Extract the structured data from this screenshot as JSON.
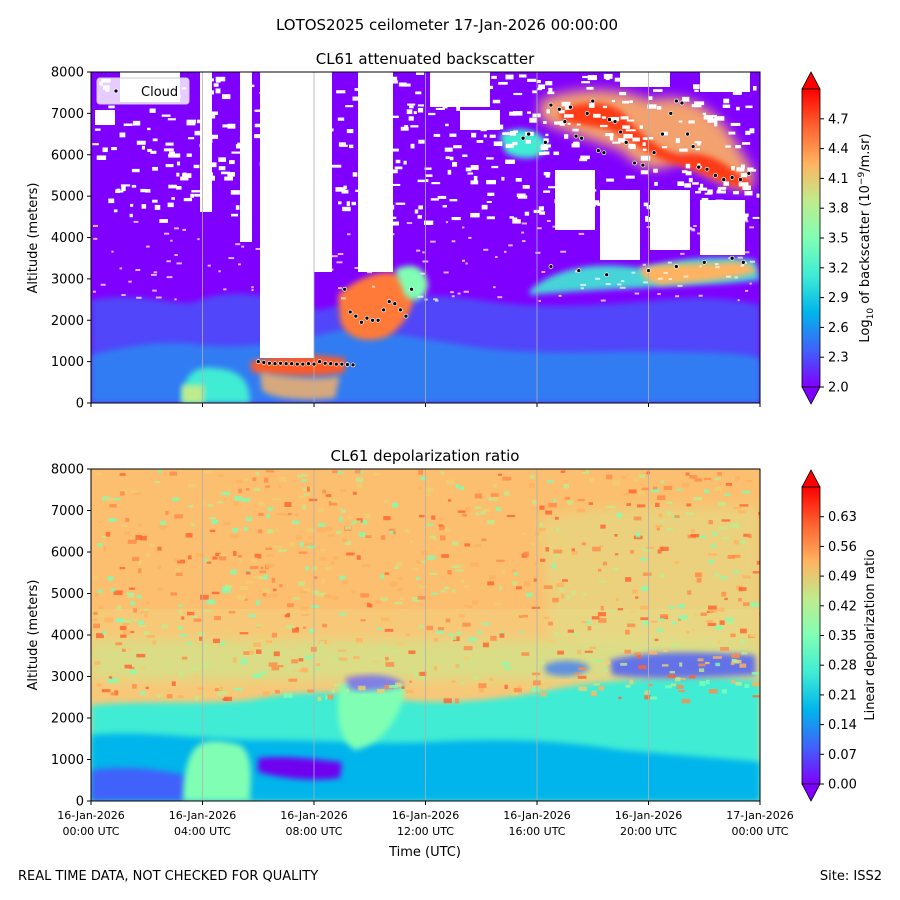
{
  "suptitle": "LOTOS2025 ceilometer 17-Jan-2026 00:00:00",
  "footer": {
    "left": "REAL TIME DATA, NOT CHECKED FOR QUALITY",
    "right": "Site: ISS2"
  },
  "chart_data": [
    {
      "type": "heatmap",
      "title": "CL61 attenuated backscatter",
      "ylabel": "Altitude (meters)",
      "xlabel": "",
      "ylim": [
        0,
        8000
      ],
      "yticks": [
        "0",
        "1000",
        "2000",
        "3000",
        "4000",
        "5000",
        "6000",
        "7000",
        "8000"
      ],
      "yticks_values": [
        0,
        1000,
        2000,
        3000,
        4000,
        5000,
        6000,
        7000,
        8000
      ],
      "x_hours": [
        0,
        4,
        8,
        12,
        16,
        20,
        24
      ],
      "colorbar": {
        "label_main": "Log",
        "label_sub": "10",
        "label_rest": " of backscatter (10",
        "label_sup": "−9",
        "label_end": "/m.sr)",
        "range": [
          2.0,
          5.0
        ],
        "ticks": [
          "2.0",
          "2.3",
          "2.6",
          "2.9",
          "3.2",
          "3.5",
          "3.8",
          "4.1",
          "4.4",
          "4.7"
        ],
        "tick_values": [
          2.0,
          2.3,
          2.6,
          2.9,
          3.2,
          3.5,
          3.8,
          4.1,
          4.4,
          4.7
        ]
      },
      "legend": {
        "label": "Cloud",
        "position": "top-left"
      },
      "cloud_points": [
        [
          6.0,
          1000
        ],
        [
          6.2,
          980
        ],
        [
          6.4,
          960
        ],
        [
          6.6,
          950
        ],
        [
          6.8,
          960
        ],
        [
          7.0,
          950
        ],
        [
          7.2,
          950
        ],
        [
          7.4,
          940
        ],
        [
          7.6,
          940
        ],
        [
          7.8,
          950
        ],
        [
          8.0,
          940
        ],
        [
          8.2,
          1000
        ],
        [
          8.4,
          960
        ],
        [
          8.6,
          950
        ],
        [
          8.8,
          940
        ],
        [
          9.0,
          940
        ],
        [
          9.2,
          930
        ],
        [
          9.4,
          920
        ],
        [
          9.1,
          2750
        ],
        [
          9.3,
          2200
        ],
        [
          9.5,
          2100
        ],
        [
          9.7,
          1950
        ],
        [
          9.9,
          2050
        ],
        [
          10.1,
          2000
        ],
        [
          10.3,
          2000
        ],
        [
          10.5,
          2250
        ],
        [
          10.7,
          2450
        ],
        [
          10.9,
          2400
        ],
        [
          11.1,
          2250
        ],
        [
          11.3,
          2100
        ],
        [
          11.5,
          2750
        ],
        [
          15.5,
          6400
        ],
        [
          15.7,
          6500
        ],
        [
          16.3,
          6300
        ],
        [
          16.5,
          7200
        ],
        [
          16.8,
          7100
        ],
        [
          17.0,
          6800
        ],
        [
          17.2,
          7150
        ],
        [
          17.4,
          6450
        ],
        [
          17.6,
          6400
        ],
        [
          17.8,
          7000
        ],
        [
          18.0,
          7300
        ],
        [
          18.2,
          6100
        ],
        [
          18.4,
          6050
        ],
        [
          18.6,
          6850
        ],
        [
          18.8,
          6800
        ],
        [
          19.0,
          6550
        ],
        [
          19.2,
          6300
        ],
        [
          19.5,
          5800
        ],
        [
          19.8,
          5750
        ],
        [
          20.2,
          6050
        ],
        [
          20.5,
          6500
        ],
        [
          20.8,
          7000
        ],
        [
          21.0,
          7300
        ],
        [
          21.2,
          7250
        ],
        [
          21.4,
          6500
        ],
        [
          21.6,
          6200
        ],
        [
          21.8,
          5700
        ],
        [
          22.1,
          5650
        ],
        [
          22.4,
          5500
        ],
        [
          22.7,
          5400
        ],
        [
          23.0,
          5450
        ],
        [
          23.3,
          5400
        ],
        [
          23.6,
          5550
        ],
        [
          16.5,
          3300
        ],
        [
          17.5,
          3200
        ],
        [
          18.5,
          3100
        ],
        [
          20.0,
          3200
        ],
        [
          21.0,
          3300
        ],
        [
          22.0,
          3400
        ],
        [
          23.0,
          3500
        ],
        [
          23.4,
          3400
        ]
      ]
    },
    {
      "type": "heatmap",
      "title": "CL61 depolarization ratio",
      "ylabel": "Altitude (meters)",
      "xlabel": "Time (UTC)",
      "ylim": [
        0,
        8000
      ],
      "yticks": [
        "0",
        "1000",
        "2000",
        "3000",
        "4000",
        "5000",
        "6000",
        "7000",
        "8000"
      ],
      "yticks_values": [
        0,
        1000,
        2000,
        3000,
        4000,
        5000,
        6000,
        7000,
        8000
      ],
      "x_hours": [
        0,
        4,
        8,
        12,
        16,
        20,
        24
      ],
      "xticks": [
        [
          "16-Jan-2026",
          "00:00 UTC"
        ],
        [
          "16-Jan-2026",
          "04:00 UTC"
        ],
        [
          "16-Jan-2026",
          "08:00 UTC"
        ],
        [
          "16-Jan-2026",
          "12:00 UTC"
        ],
        [
          "16-Jan-2026",
          "16:00 UTC"
        ],
        [
          "16-Jan-2026",
          "20:00 UTC"
        ],
        [
          "17-Jan-2026",
          "00:00 UTC"
        ]
      ],
      "colorbar": {
        "label": "Linear depolarization ratio",
        "range": [
          0.0,
          0.7
        ],
        "ticks": [
          "0.00",
          "0.07",
          "0.14",
          "0.21",
          "0.28",
          "0.35",
          "0.42",
          "0.49",
          "0.56",
          "0.63"
        ],
        "tick_values": [
          0.0,
          0.07,
          0.14,
          0.21,
          0.28,
          0.35,
          0.42,
          0.49,
          0.56,
          0.63
        ]
      }
    }
  ]
}
